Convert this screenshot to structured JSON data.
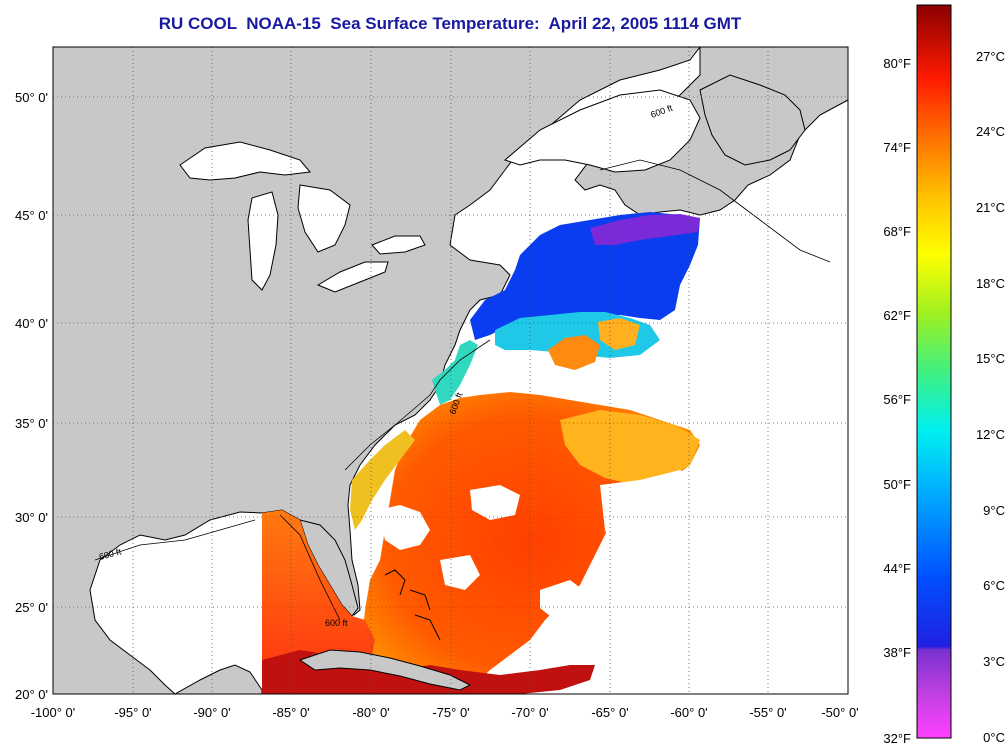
{
  "title": "RU COOL  NOAA-15  Sea Surface Temperature:  April 22, 2005 1114 GMT",
  "map": {
    "lat_labels": [
      "50° 0'",
      "45° 0'",
      "40° 0'",
      "35° 0'",
      "30° 0'",
      "25° 0'",
      "20° 0'"
    ],
    "lon_labels": [
      "-100° 0'",
      "-95° 0'",
      "-90° 0'",
      "-85° 0'",
      "-80° 0'",
      "-75° 0'",
      "-70° 0'",
      "-65° 0'",
      "-60° 0'",
      "-55° 0'",
      "-50° 0'"
    ],
    "lat_range": [
      20,
      52.5
    ],
    "lon_range": [
      -100,
      -50
    ],
    "isobath_label": "600 ft",
    "land_color": "#c8c8c8",
    "no_data_color": "#ffffff"
  },
  "colorbar": {
    "fahrenheit_labels": [
      "80°F",
      "74°F",
      "68°F",
      "62°F",
      "56°F",
      "50°F",
      "44°F",
      "38°F",
      "32°F"
    ],
    "celsius_labels": [
      "27°C",
      "24°C",
      "21°C",
      "18°C",
      "15°C",
      "12°C",
      "9°C",
      "6°C",
      "3°C",
      "0°C"
    ]
  }
}
